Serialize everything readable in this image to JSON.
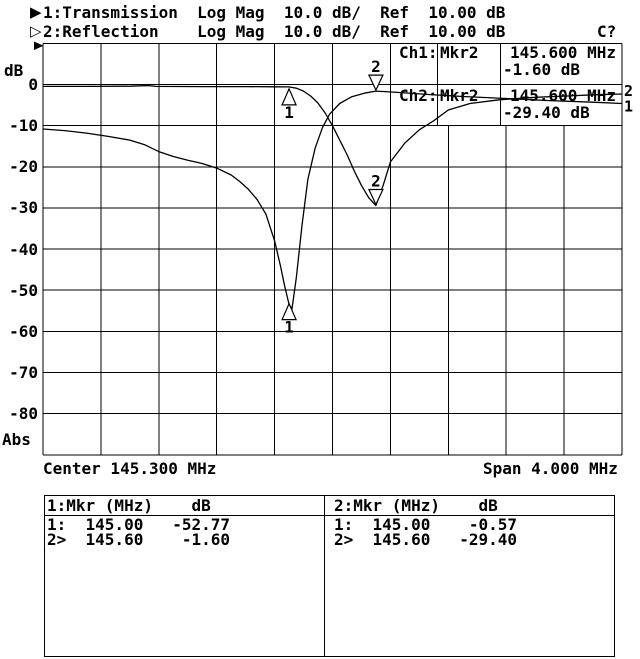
{
  "header": {
    "ch1_indicator": "▶",
    "ch1_line": "1:Transmission  Log Mag  10.0 dB/  Ref  10.00 dB",
    "ch2_indicator": "▷",
    "ch2_line": "2:Reflection    Log Mag  10.0 dB/  Ref  10.00 dB",
    "status": "C?"
  },
  "graticule": {
    "y_unit_label": "dB",
    "y_mode_label": "Abs",
    "center_label": "Center 145.300 MHz",
    "span_label": "Span 4.000 MHz"
  },
  "readout": {
    "ch1": {
      "channel": "Ch1:",
      "marker": "Mkr2",
      "freq": "145.600 MHz",
      "value": "-1.60 dB"
    },
    "ch2": {
      "channel": "Ch2:",
      "marker": "Mkr2",
      "freq": "145.600 MHz",
      "value": "-29.40 dB"
    }
  },
  "marker_table": {
    "columns": [
      {
        "header": "1:Mkr (MHz)    dB",
        "rows": [
          "1:  145.00   -52.77",
          "2>  145.60    -1.60"
        ]
      },
      {
        "header": "2:Mkr (MHz)    dB",
        "rows": [
          "1:  145.00    -0.57",
          "2>  145.60   -29.40"
        ]
      }
    ]
  },
  "chart_data": {
    "type": "line",
    "title": "",
    "x_axis": {
      "unit": "MHz",
      "center": 145.3,
      "span": 4.0,
      "min": 143.3,
      "max": 147.3,
      "divisions": 10
    },
    "y_axis": {
      "unit": "dB",
      "per_div": 10.0,
      "ref": 10.0,
      "max": 10,
      "min": -90,
      "ticks": [
        "0",
        "-10",
        "-20",
        "-30",
        "-40",
        "-50",
        "-60",
        "-70",
        "-80"
      ]
    },
    "grid": true,
    "series": [
      {
        "name": "1:Transmission",
        "format": "Log Mag",
        "edge_label": "1",
        "points": [
          [
            143.3,
            -10.8
          ],
          [
            143.45,
            -11.2
          ],
          [
            143.6,
            -11.8
          ],
          [
            143.75,
            -12.6
          ],
          [
            143.9,
            -13.5
          ],
          [
            144.0,
            -14.6
          ],
          [
            144.1,
            -16.3
          ],
          [
            144.2,
            -17.5
          ],
          [
            144.3,
            -18.4
          ],
          [
            144.4,
            -19.2
          ],
          [
            144.5,
            -20.3
          ],
          [
            144.6,
            -22.0
          ],
          [
            144.66,
            -23.6
          ],
          [
            144.72,
            -25.5
          ],
          [
            144.78,
            -28.0
          ],
          [
            144.84,
            -31.5
          ],
          [
            144.9,
            -38.0
          ],
          [
            144.94,
            -44.0
          ],
          [
            144.97,
            -49.0
          ],
          [
            145.0,
            -53.5
          ],
          [
            145.02,
            -54.5
          ],
          [
            145.05,
            -47.0
          ],
          [
            145.09,
            -34.0
          ],
          [
            145.13,
            -23.0
          ],
          [
            145.18,
            -15.5
          ],
          [
            145.23,
            -10.5
          ],
          [
            145.28,
            -7.2
          ],
          [
            145.35,
            -4.6
          ],
          [
            145.43,
            -3.0
          ],
          [
            145.52,
            -2.1
          ],
          [
            145.6,
            -1.6
          ],
          [
            145.75,
            -1.9
          ],
          [
            145.95,
            -2.4
          ],
          [
            146.2,
            -2.9
          ],
          [
            146.5,
            -3.4
          ],
          [
            146.8,
            -3.9
          ],
          [
            147.1,
            -4.3
          ],
          [
            147.3,
            -4.6
          ]
        ],
        "markers": [
          {
            "label": "1",
            "freq": 145.0,
            "db": -52.77,
            "orient": "below"
          },
          {
            "label": "2",
            "freq": 145.6,
            "db": -1.6,
            "orient": "above"
          }
        ]
      },
      {
        "name": "2:Reflection",
        "format": "Log Mag",
        "edge_label": "2",
        "points": [
          [
            143.3,
            -0.45
          ],
          [
            143.6,
            -0.45
          ],
          [
            143.9,
            -0.4
          ],
          [
            143.97,
            -0.3
          ],
          [
            144.03,
            -0.25
          ],
          [
            144.08,
            -0.45
          ],
          [
            144.4,
            -0.5
          ],
          [
            144.7,
            -0.5
          ],
          [
            144.9,
            -0.55
          ],
          [
            145.0,
            -0.57
          ],
          [
            145.05,
            -0.9
          ],
          [
            145.1,
            -1.6
          ],
          [
            145.15,
            -2.8
          ],
          [
            145.2,
            -4.5
          ],
          [
            145.25,
            -7.0
          ],
          [
            145.3,
            -10.0
          ],
          [
            145.35,
            -13.5
          ],
          [
            145.4,
            -17.0
          ],
          [
            145.45,
            -21.0
          ],
          [
            145.5,
            -24.5
          ],
          [
            145.55,
            -27.5
          ],
          [
            145.6,
            -29.4
          ],
          [
            145.65,
            -24.5
          ],
          [
            145.7,
            -18.8
          ],
          [
            145.8,
            -14.2
          ],
          [
            145.9,
            -11.0
          ],
          [
            146.0,
            -8.8
          ],
          [
            146.1,
            -6.2
          ],
          [
            146.25,
            -4.6
          ],
          [
            146.45,
            -3.7
          ],
          [
            146.7,
            -3.1
          ],
          [
            146.9,
            -2.8
          ],
          [
            147.1,
            -2.5
          ],
          [
            147.3,
            -2.3
          ]
        ],
        "markers": [
          {
            "label": "1",
            "freq": 145.0,
            "db": -0.57,
            "orient": "below"
          },
          {
            "label": "2",
            "freq": 145.6,
            "db": -29.4,
            "orient": "above"
          }
        ]
      }
    ]
  }
}
